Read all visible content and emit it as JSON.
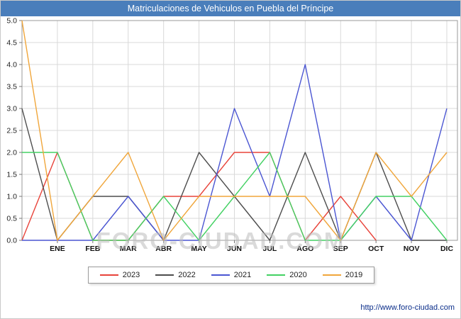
{
  "title_bar": {
    "title": "Matriculaciones de Vehiculos en Puebla del Príncipe"
  },
  "watermark": "FORO-CIUDAD.COM",
  "footer": {
    "url": "http://www.foro-ciudad.com"
  },
  "colors": {
    "title_bar_bg": "#4a7ebb",
    "watermark_color": "#bdbdbd",
    "grid_color": "#d9d9d9",
    "axis_border_color": "#9a9a9a"
  },
  "chart_data": {
    "type": "line",
    "title": "Matriculaciones de Vehiculos en Puebla del Príncipe",
    "xlabel": "",
    "ylabel": "",
    "ylim": [
      0,
      5
    ],
    "grid": true,
    "legend_position": "bottom",
    "categories": [
      "",
      "ENE",
      "FEB",
      "MAR",
      "ABR",
      "MAY",
      "JUN",
      "JUL",
      "AGO",
      "SEP",
      "OCT",
      "NOV",
      "DIC"
    ],
    "y_ticks": [
      "0.0",
      "0.5",
      "1.0",
      "1.5",
      "2.0",
      "2.5",
      "3.0",
      "3.5",
      "4.0",
      "4.5",
      "5.0"
    ],
    "series": [
      {
        "name": "2023",
        "color": "#e8433a",
        "values": [
          0,
          2,
          0,
          0,
          1,
          1,
          2,
          2,
          0,
          1,
          0,
          null,
          null
        ]
      },
      {
        "name": "2022",
        "color": "#4d4d4d",
        "values": [
          3,
          0,
          1,
          1,
          0,
          2,
          1,
          0,
          2,
          0,
          2,
          0,
          0
        ]
      },
      {
        "name": "2021",
        "color": "#4a55d2",
        "values": [
          0,
          0,
          0,
          1,
          0,
          0,
          3,
          1,
          4,
          0,
          1,
          0,
          3
        ]
      },
      {
        "name": "2020",
        "color": "#43d163",
        "values": [
          2,
          2,
          0,
          0,
          1,
          0,
          1,
          2,
          0,
          0,
          1,
          1,
          0
        ]
      },
      {
        "name": "2019",
        "color": "#f0a63b",
        "values": [
          5,
          0,
          1,
          2,
          0,
          1,
          1,
          1,
          1,
          0,
          2,
          1,
          2
        ]
      }
    ]
  }
}
